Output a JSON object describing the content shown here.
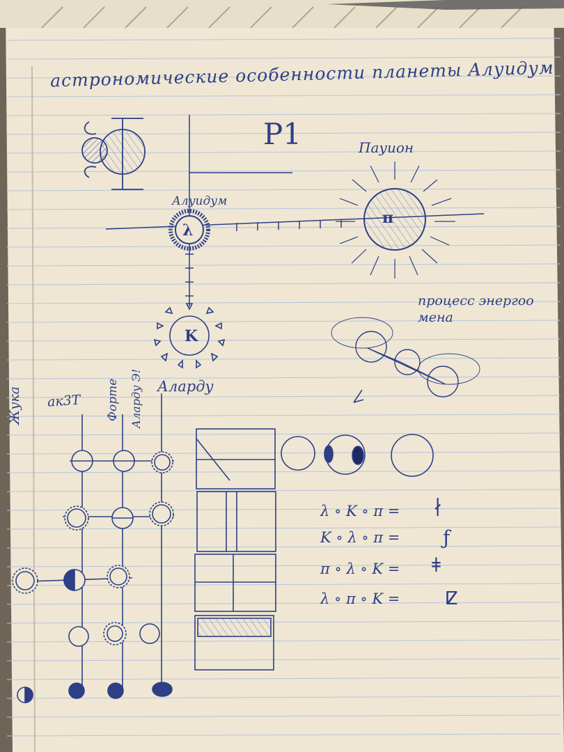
{
  "title": "астрономические особенности планеты Алуидум",
  "labels": {
    "p1": "P1",
    "pauion": "Пауион",
    "alwidum": "Алуидум",
    "process": [
      "процесс энергоо",
      "мена"
    ],
    "zhuka": "Жука",
    "ak3t": "ак3Т",
    "forte": "Форте",
    "alarduz": "Аларду Э!",
    "alarduu": "Аларду"
  },
  "symbols": {
    "lambda": "λ",
    "pi": "π",
    "kappa": "K"
  },
  "equations": [
    {
      "lhs": "λ ∘ K ∘ π =",
      "rhs": "∤"
    },
    {
      "lhs": "K ∘ λ ∘ π =",
      "rhs": "ƒ"
    },
    {
      "lhs": "π ∘ λ ∘ K =",
      "rhs": "ǂ"
    },
    {
      "lhs": "λ ∘ π ∘ K =",
      "rhs": "ⵇ"
    }
  ],
  "colors": {
    "paper": "#efe7d4",
    "ink": "#2d3f86",
    "line": "#b7c3dc",
    "margin": "#c9b9a8"
  }
}
